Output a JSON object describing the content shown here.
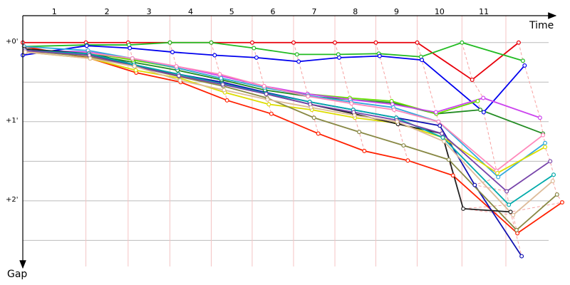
{
  "chart_data": {
    "type": "line",
    "x_label": "Time",
    "y_label": "Gap",
    "xlim": [
      0,
      125
    ],
    "ylim": [
      -0.34,
      2.83
    ],
    "laps": [
      "1",
      "2",
      "3",
      "4",
      "5",
      "6",
      "7",
      "8",
      "9",
      "10",
      "11"
    ],
    "lap_lines": [
      14.8,
      24.7,
      34.5,
      44.2,
      53.8,
      63.5,
      73.2,
      82.8,
      92.5,
      103,
      113.3
    ],
    "yticks": [
      {
        "value": 0,
        "label": "+0'"
      },
      {
        "value": 1,
        "label": "+1'"
      },
      {
        "value": 2,
        "label": "+2'"
      }
    ],
    "ygrid": [
      0,
      0.5,
      1,
      1.5,
      2,
      2.5
    ],
    "series": [
      {
        "color": "#e8000b",
        "x": [
          0,
          14.8,
          24.7,
          34.5,
          44.2,
          53.8,
          63.5,
          73.2,
          82.8,
          92.5,
          105.4,
          116.3
        ],
        "values": [
          0,
          0,
          0,
          0,
          0,
          0,
          0,
          0,
          0,
          0,
          0.47,
          0
        ]
      },
      {
        "color": "#22bb22",
        "x": [
          0.3,
          15,
          24.9,
          34.5,
          44.2,
          54.2,
          64.3,
          74,
          83.5,
          93.4,
          103,
          117.3
        ],
        "values": [
          0.05,
          0.03,
          0.03,
          0,
          0,
          0.07,
          0.15,
          0.15,
          0.14,
          0.18,
          0,
          0.23
        ]
      },
      {
        "color": "#0000ee",
        "x": [
          0,
          15,
          25.1,
          35.1,
          45,
          54.8,
          64.7,
          74.2,
          83.7,
          93.6,
          108.1,
          117.7
        ],
        "values": [
          0.16,
          0.04,
          0.07,
          0.12,
          0.16,
          0.19,
          0.24,
          0.19,
          0.17,
          0.22,
          0.88,
          0.29
        ]
      },
      {
        "color": "#ff2000",
        "x": [
          0.3,
          15.8,
          26.6,
          37,
          47.9,
          58.3,
          69.3,
          80.1,
          90.3,
          100.9,
          116,
          126.5
        ],
        "values": [
          0.05,
          0.2,
          0.38,
          0.5,
          0.73,
          0.9,
          1.15,
          1.37,
          1.49,
          1.68,
          2.41,
          2.02
        ]
      },
      {
        "color": "#1010b0",
        "x": [
          0.5,
          15.4,
          26.1,
          36.5,
          46.7,
          57,
          67.3,
          77.5,
          87.6,
          97.8,
          106,
          117
        ],
        "values": [
          0.1,
          0.12,
          0.28,
          0.4,
          0.5,
          0.63,
          0.75,
          0.85,
          0.95,
          1.05,
          1.8,
          2.7
        ]
      },
      {
        "color": "#228b22",
        "x": [
          0.4,
          15.6,
          26,
          36.3,
          46.6,
          56.8,
          66.9,
          76.8,
          86.6,
          97,
          107.3,
          122
        ],
        "values": [
          0.08,
          0.15,
          0.25,
          0.35,
          0.47,
          0.6,
          0.68,
          0.72,
          0.76,
          0.9,
          0.85,
          1.15
        ]
      },
      {
        "color": "#66dd00",
        "x": [
          0.6,
          15.5,
          25.8,
          36.1,
          46.5,
          56.7,
          66.8,
          76.7,
          86.5,
          97,
          106.7
        ],
        "values": [
          0.12,
          0.13,
          0.22,
          0.32,
          0.45,
          0.57,
          0.65,
          0.7,
          0.74,
          0.9,
          0.74
        ]
      },
      {
        "color": "#cc44ee",
        "x": [
          0.5,
          15.4,
          25.7,
          36,
          46.3,
          56.6,
          66.8,
          76.8,
          86.7,
          96.9,
          108,
          121.3
        ],
        "values": [
          0.1,
          0.12,
          0.2,
          0.3,
          0.42,
          0.55,
          0.65,
          0.72,
          0.78,
          0.88,
          0.7,
          0.95
        ]
      },
      {
        "color": "#33aadd",
        "x": [
          0.3,
          15.3,
          25.7,
          36.1,
          46.5,
          56.7,
          66.9,
          77,
          86.9,
          97.5,
          111.5,
          122.5
        ],
        "values": [
          0.05,
          0.1,
          0.2,
          0.32,
          0.45,
          0.57,
          0.67,
          0.75,
          0.82,
          1.0,
          1.7,
          1.27
        ]
      },
      {
        "color": "#ff88bb",
        "x": [
          0.6,
          15.5,
          25.7,
          36,
          46.2,
          56.6,
          66.9,
          77.1,
          87.1,
          97.5,
          111.1,
          122
        ],
        "values": [
          0.12,
          0.13,
          0.2,
          0.3,
          0.4,
          0.55,
          0.68,
          0.77,
          0.85,
          1.0,
          1.62,
          1.17
        ]
      },
      {
        "color": "#dddd00",
        "x": [
          0.6,
          15.8,
          26.5,
          36.8,
          47.4,
          57.7,
          67.8,
          77.9,
          87.9,
          98.5,
          111.3,
          122.5
        ],
        "values": [
          0.12,
          0.2,
          0.35,
          0.45,
          0.63,
          0.78,
          0.85,
          0.95,
          1.02,
          1.2,
          1.65,
          1.32
        ]
      },
      {
        "color": "#888844",
        "x": [
          0.5,
          15.7,
          26.2,
          36.7,
          47,
          57.3,
          68.3,
          78.9,
          89.3,
          99.9,
          115.8,
          125.3
        ],
        "values": [
          0.1,
          0.18,
          0.3,
          0.43,
          0.55,
          0.7,
          0.95,
          1.13,
          1.3,
          1.48,
          2.37,
          1.92
        ]
      },
      {
        "color": "#222222",
        "x": [
          0.4,
          15.5,
          26.2,
          36.5,
          46.8,
          57.1,
          67.4,
          77.7,
          88,
          98.3,
          103.3,
          114.4
        ],
        "values": [
          0.08,
          0.14,
          0.3,
          0.4,
          0.52,
          0.65,
          0.78,
          0.9,
          1.03,
          1.15,
          2.1,
          2.14
        ]
      },
      {
        "color": "#00aaaa",
        "x": [
          0.5,
          15.5,
          26.1,
          36.5,
          46.8,
          57,
          67.3,
          77.5,
          87.6,
          98.5,
          114,
          124.5
        ],
        "values": [
          0.1,
          0.14,
          0.28,
          0.4,
          0.52,
          0.64,
          0.75,
          0.85,
          0.95,
          1.2,
          2.05,
          1.67
        ]
      },
      {
        "color": "#7744aa",
        "x": [
          0.5,
          15.6,
          26.2,
          36.6,
          46.9,
          57.1,
          67.4,
          77.6,
          87.7,
          98.3,
          113.5,
          123.7
        ],
        "values": [
          0.1,
          0.16,
          0.3,
          0.42,
          0.53,
          0.65,
          0.78,
          0.88,
          0.98,
          1.15,
          1.88,
          1.5
        ]
      },
      {
        "color": "#ddbb99",
        "x": [
          0.6,
          15.8,
          26.2,
          36.9,
          47.2,
          57.4,
          67.6,
          77.8,
          87.8,
          98.8,
          115,
          124.3
        ],
        "values": [
          0.12,
          0.2,
          0.3,
          0.48,
          0.6,
          0.72,
          0.82,
          0.92,
          1.0,
          1.25,
          2.18,
          1.75
        ]
      }
    ]
  }
}
